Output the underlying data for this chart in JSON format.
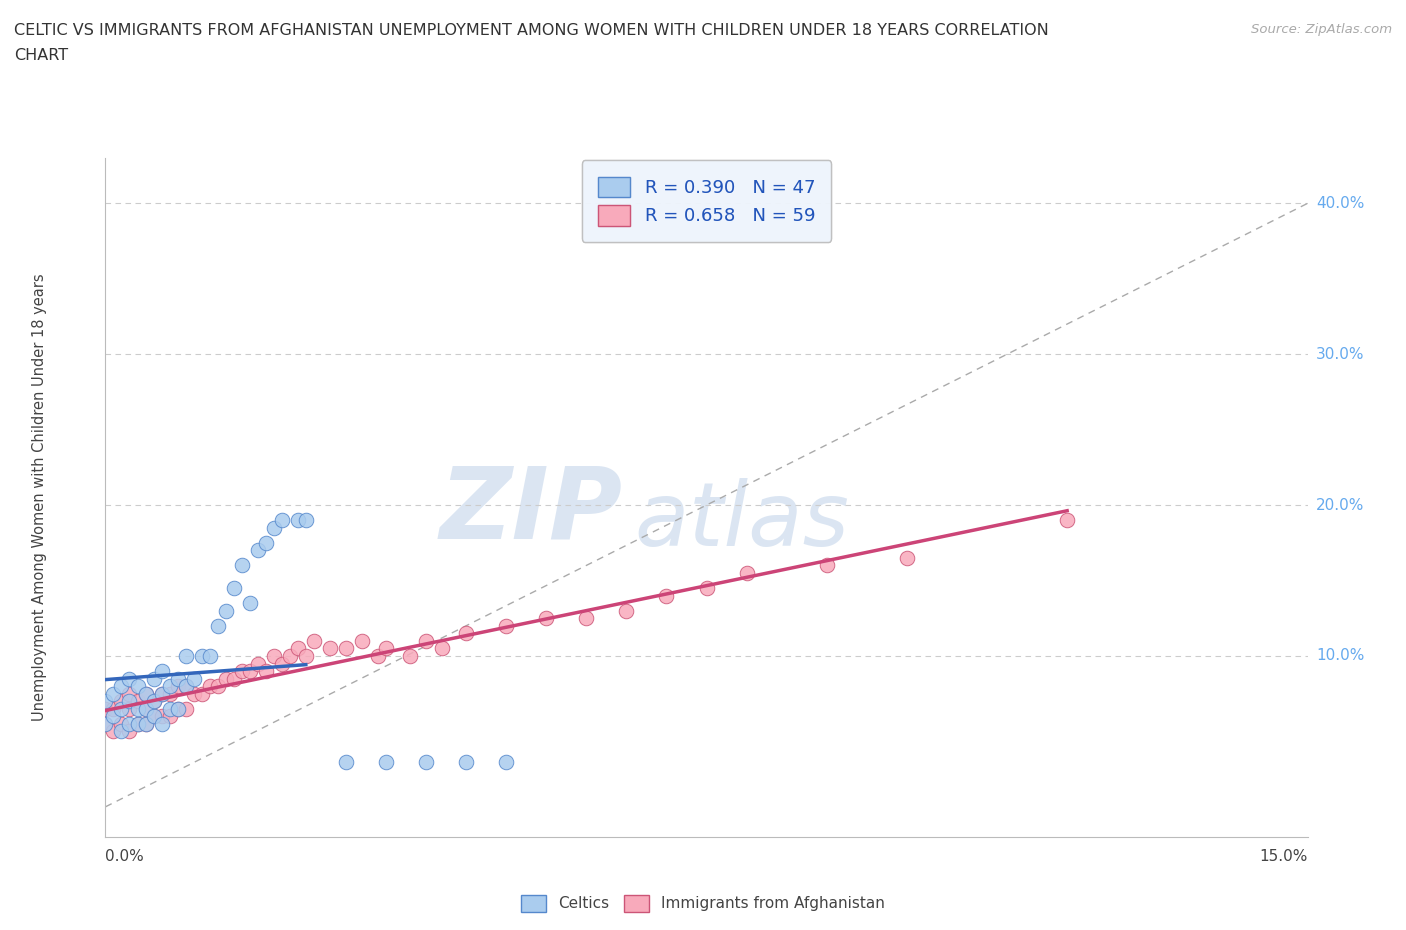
{
  "title_line1": "CELTIC VS IMMIGRANTS FROM AFGHANISTAN UNEMPLOYMENT AMONG WOMEN WITH CHILDREN UNDER 18 YEARS CORRELATION",
  "title_line2": "CHART",
  "source": "Source: ZipAtlas.com",
  "ylabel": "Unemployment Among Women with Children Under 18 years",
  "xlim": [
    0.0,
    0.15
  ],
  "ylim": [
    -0.02,
    0.43
  ],
  "celtics_R": 0.39,
  "celtics_N": 47,
  "afghan_R": 0.658,
  "afghan_N": 59,
  "celtics_color": "#aaccee",
  "celtics_edge_color": "#5588cc",
  "afghan_color": "#f8aabb",
  "afghan_edge_color": "#cc5577",
  "celtics_line_color": "#3366bb",
  "afghan_line_color": "#cc4477",
  "dashed_line_color": "#aaaaaa",
  "grid_color": "#cccccc",
  "right_tick_color": "#66aaee",
  "yticks_right": [
    0.1,
    0.2,
    0.3,
    0.4
  ],
  "ytick_right_labels": [
    "10.0%",
    "20.0%",
    "30.0%",
    "40.0%"
  ],
  "celtics_x": [
    0.0,
    0.0,
    0.001,
    0.001,
    0.002,
    0.002,
    0.002,
    0.003,
    0.003,
    0.003,
    0.004,
    0.004,
    0.004,
    0.005,
    0.005,
    0.005,
    0.006,
    0.006,
    0.006,
    0.007,
    0.007,
    0.007,
    0.008,
    0.008,
    0.009,
    0.009,
    0.01,
    0.01,
    0.011,
    0.012,
    0.013,
    0.014,
    0.015,
    0.016,
    0.017,
    0.018,
    0.019,
    0.02,
    0.021,
    0.022,
    0.024,
    0.025,
    0.03,
    0.035,
    0.04,
    0.045,
    0.05
  ],
  "celtics_y": [
    0.055,
    0.07,
    0.06,
    0.075,
    0.05,
    0.065,
    0.08,
    0.055,
    0.07,
    0.085,
    0.055,
    0.065,
    0.08,
    0.055,
    0.065,
    0.075,
    0.06,
    0.07,
    0.085,
    0.055,
    0.075,
    0.09,
    0.065,
    0.08,
    0.065,
    0.085,
    0.08,
    0.1,
    0.085,
    0.1,
    0.1,
    0.12,
    0.13,
    0.145,
    0.16,
    0.135,
    0.17,
    0.175,
    0.185,
    0.19,
    0.19,
    0.19,
    0.03,
    0.03,
    0.03,
    0.03,
    0.03
  ],
  "afghan_x": [
    0.0,
    0.0,
    0.001,
    0.001,
    0.002,
    0.002,
    0.003,
    0.003,
    0.003,
    0.004,
    0.004,
    0.005,
    0.005,
    0.005,
    0.006,
    0.006,
    0.007,
    0.007,
    0.008,
    0.008,
    0.009,
    0.009,
    0.01,
    0.01,
    0.011,
    0.012,
    0.013,
    0.014,
    0.015,
    0.016,
    0.017,
    0.018,
    0.019,
    0.02,
    0.021,
    0.022,
    0.023,
    0.024,
    0.025,
    0.026,
    0.028,
    0.03,
    0.032,
    0.034,
    0.035,
    0.038,
    0.04,
    0.042,
    0.045,
    0.05,
    0.055,
    0.06,
    0.065,
    0.07,
    0.075,
    0.08,
    0.09,
    0.1,
    0.12
  ],
  "afghan_y": [
    0.055,
    0.065,
    0.05,
    0.065,
    0.055,
    0.07,
    0.05,
    0.065,
    0.075,
    0.055,
    0.07,
    0.055,
    0.065,
    0.075,
    0.06,
    0.07,
    0.06,
    0.075,
    0.06,
    0.075,
    0.065,
    0.08,
    0.065,
    0.08,
    0.075,
    0.075,
    0.08,
    0.08,
    0.085,
    0.085,
    0.09,
    0.09,
    0.095,
    0.09,
    0.1,
    0.095,
    0.1,
    0.105,
    0.1,
    0.11,
    0.105,
    0.105,
    0.11,
    0.1,
    0.105,
    0.1,
    0.11,
    0.105,
    0.115,
    0.12,
    0.125,
    0.125,
    0.13,
    0.14,
    0.145,
    0.155,
    0.16,
    0.165,
    0.19
  ]
}
